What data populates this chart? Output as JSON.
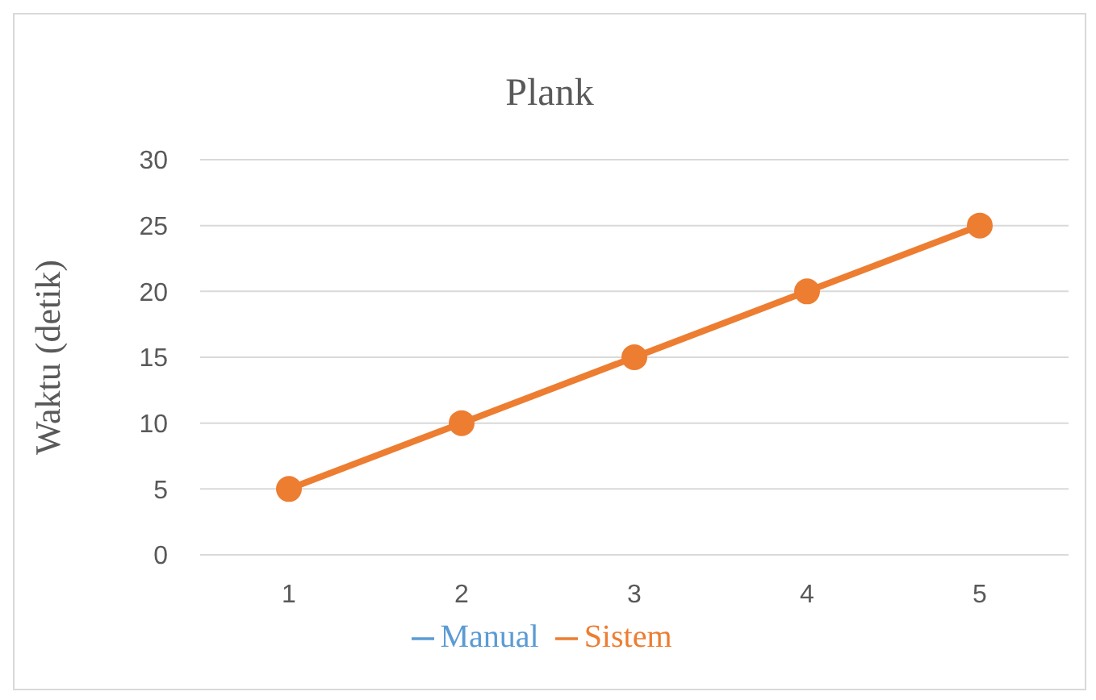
{
  "chart_data": {
    "type": "line",
    "title": "Plank",
    "ylabel": "Waktu (detik)",
    "categories": [
      "1",
      "2",
      "3",
      "4",
      "5"
    ],
    "series": [
      {
        "name": "Manual",
        "color": "#5b9bd5",
        "values": [
          null,
          null,
          null,
          null,
          null
        ]
      },
      {
        "name": "Sistem",
        "color": "#ed7d31",
        "values": [
          5,
          10,
          15,
          20,
          25
        ]
      }
    ],
    "ylim": [
      0,
      30
    ],
    "yticks": [
      0,
      5,
      10,
      15,
      20,
      25,
      30
    ],
    "grid": "y",
    "legend": "bottom",
    "marker": "circle",
    "line_style": "solid"
  }
}
